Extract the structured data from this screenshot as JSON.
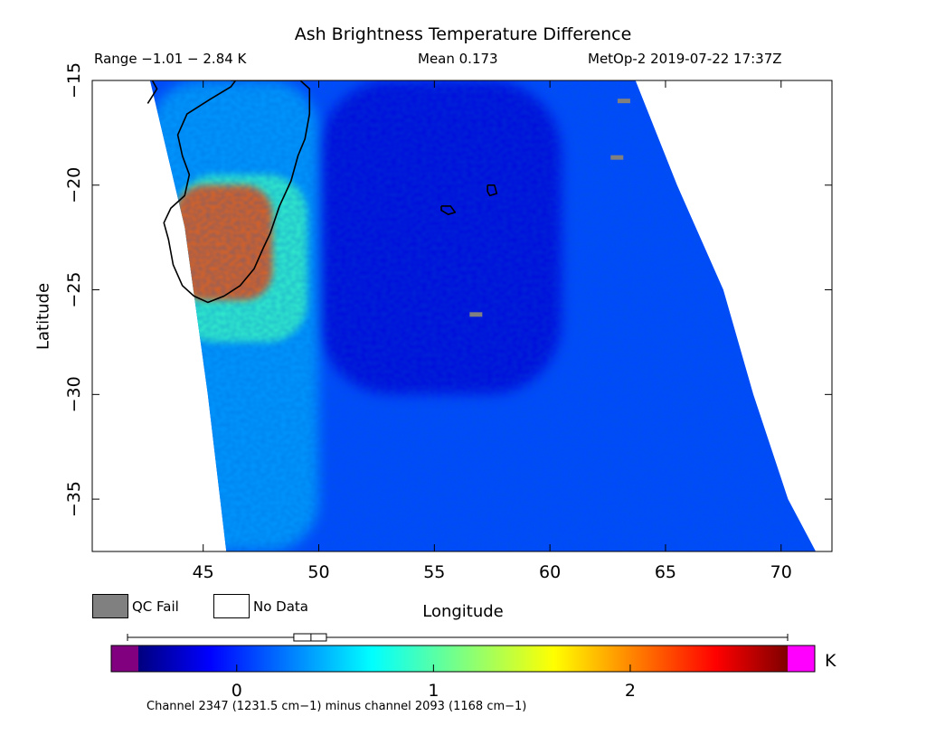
{
  "header": {
    "title": "Ash Brightness Temperature Difference",
    "range": "Range −1.01 − 2.84 K",
    "mean": "Mean 0.173",
    "satellite_time": "MetOp-2 2019-07-22 17:37Z"
  },
  "legend": {
    "qc_fail_label": "QC Fail",
    "qc_fail_color": "#808080",
    "no_data_label": "No Data",
    "no_data_color": "#ffffff"
  },
  "colorbar": {
    "unit": "K",
    "range": [
      -0.5,
      2.8
    ],
    "under_color": "#800080",
    "over_color": "#ff00ff",
    "ticks": [
      {
        "value": 0,
        "label": "0"
      },
      {
        "value": 1,
        "label": "1"
      },
      {
        "value": 2,
        "label": "2"
      }
    ],
    "boxplot": {
      "min": -1.01,
      "q1": -0.04,
      "median": 0.06,
      "q3": 0.15,
      "max": 2.84
    }
  },
  "footnote": "Channel 2347 (1231.5 cm−1) minus channel 2093 (1168 cm−1)",
  "chart_data": {
    "type": "heatmap",
    "xlabel": "Longitude",
    "ylabel": "Latitude",
    "xlim": [
      40.2,
      72.2
    ],
    "ylim": [
      -37.5,
      -15
    ],
    "x_ticks": [
      45,
      50,
      55,
      60,
      65,
      70
    ],
    "y_ticks": [
      -15,
      -20,
      -25,
      -30,
      -35
    ],
    "x_tick_labels": [
      "45",
      "50",
      "55",
      "60",
      "65",
      "70"
    ],
    "y_tick_labels": [
      "−15",
      "−20",
      "−25",
      "−30",
      "−35"
    ],
    "swath": {
      "west_edge": [
        [
          42.7,
          -15
        ],
        [
          44.2,
          -22
        ],
        [
          45.2,
          -30
        ],
        [
          46.0,
          -37.5
        ]
      ],
      "east_edge": [
        [
          63.7,
          -15
        ],
        [
          65.5,
          -20
        ],
        [
          67.5,
          -25
        ],
        [
          68.8,
          -30
        ],
        [
          70.3,
          -35
        ],
        [
          71.5,
          -37.5
        ]
      ]
    },
    "regions": [
      {
        "desc": "ash plume",
        "lon": [
          43.8,
          48.0
        ],
        "lat": [
          -25.5,
          -20.0
        ],
        "value": 2.2
      },
      {
        "desc": "plume margin",
        "lon": [
          43.8,
          49.5
        ],
        "lat": [
          -27.5,
          -19.5
        ],
        "value": 0.9
      },
      {
        "desc": "western swath",
        "lon": [
          42.7,
          50.0
        ],
        "lat": [
          -37.5,
          -15
        ],
        "value": 0.4
      },
      {
        "desc": "central low band",
        "lon": [
          50.0,
          60.5
        ],
        "lat": [
          -30.0,
          -15
        ],
        "value": -0.25
      },
      {
        "desc": "background",
        "lon": [
          50.0,
          71.5
        ],
        "lat": [
          -37.5,
          -15
        ],
        "value": 0.1
      }
    ],
    "coastlines": [
      [
        [
          42.8,
          -15.0
        ],
        [
          43.0,
          -15.4
        ],
        [
          42.6,
          -16.1
        ]
      ],
      [
        [
          46.2,
          -15.0
        ],
        [
          47.4,
          -15.0
        ],
        [
          48.0,
          -15.0
        ],
        [
          49.2,
          -15.0
        ],
        [
          49.6,
          -15.4
        ],
        [
          49.6,
          -16.6
        ],
        [
          49.4,
          -17.8
        ],
        [
          49.1,
          -18.6
        ],
        [
          48.8,
          -19.8
        ],
        [
          48.3,
          -21.0
        ],
        [
          47.9,
          -22.3
        ],
        [
          47.6,
          -23.0
        ],
        [
          47.2,
          -24.0
        ],
        [
          46.6,
          -24.8
        ],
        [
          45.9,
          -25.3
        ],
        [
          45.2,
          -25.6
        ],
        [
          44.6,
          -25.3
        ],
        [
          44.1,
          -24.8
        ],
        [
          43.7,
          -23.8
        ],
        [
          43.5,
          -22.6
        ],
        [
          43.3,
          -21.8
        ],
        [
          43.6,
          -21.1
        ],
        [
          44.2,
          -20.5
        ],
        [
          44.4,
          -19.5
        ],
        [
          44.1,
          -18.6
        ],
        [
          43.9,
          -17.6
        ],
        [
          44.3,
          -16.6
        ],
        [
          45.3,
          -15.9
        ],
        [
          46.2,
          -15.3
        ],
        [
          46.4,
          -15.0
        ]
      ],
      [
        [
          55.3,
          -21.0
        ],
        [
          55.7,
          -21.0
        ],
        [
          55.9,
          -21.3
        ],
        [
          55.6,
          -21.4
        ],
        [
          55.3,
          -21.2
        ],
        [
          55.3,
          -21.0
        ]
      ],
      [
        [
          57.3,
          -20.0
        ],
        [
          57.6,
          -20.0
        ],
        [
          57.7,
          -20.4
        ],
        [
          57.4,
          -20.5
        ],
        [
          57.3,
          -20.3
        ],
        [
          57.3,
          -20.0
        ]
      ]
    ],
    "qc_fail_pixels": [
      [
        63.2,
        -16.0
      ],
      [
        62.9,
        -18.7
      ],
      [
        56.8,
        -26.2
      ]
    ]
  }
}
